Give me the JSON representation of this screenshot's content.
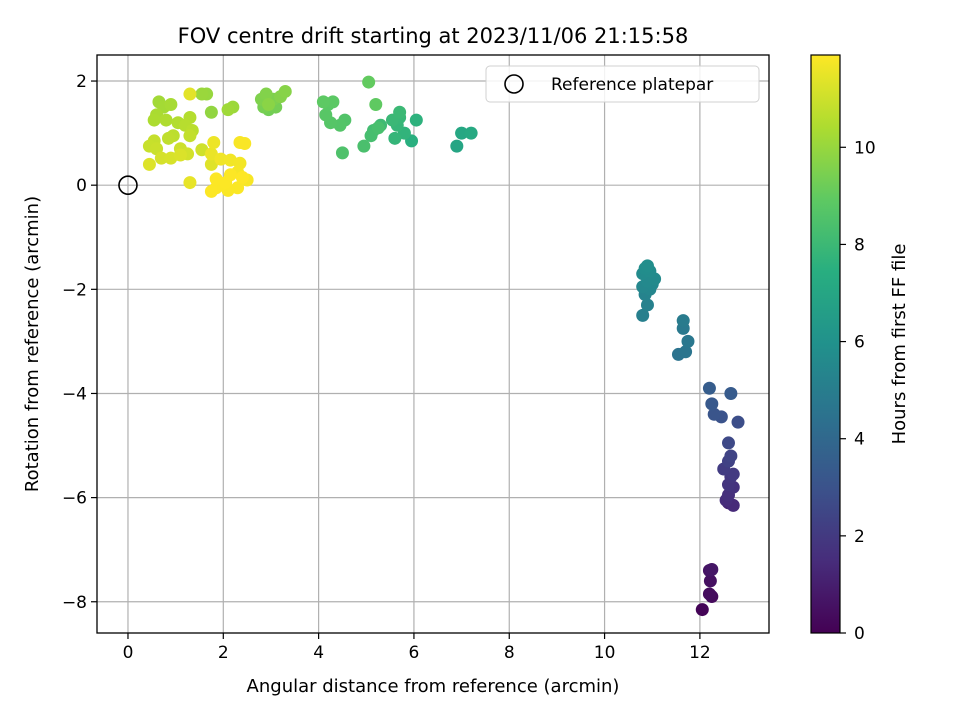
{
  "chart_data": {
    "type": "scatter",
    "title": "FOV centre drift starting at 2023/11/06 21:15:58",
    "xlabel": "Angular distance from reference (arcmin)",
    "ylabel": "Rotation from reference (arcmin)",
    "xlim": [
      -0.65,
      13.45
    ],
    "ylim": [
      -8.6,
      2.5
    ],
    "xticks": [
      0,
      2,
      4,
      6,
      8,
      10,
      12
    ],
    "yticks": [
      2,
      0,
      -2,
      -4,
      -6,
      -8
    ],
    "grid": true,
    "legend": {
      "position": "top-right",
      "entries": [
        "Reference platepar"
      ]
    },
    "reference_point": {
      "x": 0,
      "y": 0,
      "label": "Reference platepar"
    },
    "colorbar": {
      "label": "Hours from first FF file",
      "colormap": "viridis",
      "range": [
        0,
        11.9
      ],
      "ticks": [
        0,
        2,
        4,
        6,
        8,
        10
      ]
    },
    "points": [
      [
        12.05,
        -8.15,
        0.1
      ],
      [
        12.25,
        -7.9,
        0.3
      ],
      [
        12.2,
        -7.85,
        0.4
      ],
      [
        12.22,
        -7.6,
        0.5
      ],
      [
        12.2,
        -7.4,
        0.6
      ],
      [
        12.25,
        -7.38,
        0.7
      ],
      [
        12.6,
        -6.1,
        1.2
      ],
      [
        12.7,
        -6.15,
        1.4
      ],
      [
        12.55,
        -6.05,
        1.5
      ],
      [
        12.6,
        -5.95,
        1.6
      ],
      [
        12.7,
        -5.8,
        1.7
      ],
      [
        12.6,
        -5.75,
        1.8
      ],
      [
        12.65,
        -5.6,
        1.9
      ],
      [
        12.7,
        -5.55,
        2.0
      ],
      [
        12.5,
        -5.45,
        2.1
      ],
      [
        12.6,
        -5.3,
        2.3
      ],
      [
        12.65,
        -5.2,
        2.4
      ],
      [
        12.6,
        -4.95,
        2.6
      ],
      [
        12.8,
        -4.55,
        2.8
      ],
      [
        12.45,
        -4.45,
        3.0
      ],
      [
        12.3,
        -4.4,
        3.1
      ],
      [
        12.25,
        -4.2,
        3.3
      ],
      [
        12.65,
        -4.0,
        3.4
      ],
      [
        12.2,
        -3.9,
        3.5
      ],
      [
        11.55,
        -3.25,
        4.5
      ],
      [
        11.7,
        -3.2,
        4.6
      ],
      [
        11.75,
        -3.0,
        4.7
      ],
      [
        11.65,
        -2.75,
        4.8
      ],
      [
        11.65,
        -2.6,
        4.9
      ],
      [
        10.8,
        -2.5,
        5.1
      ],
      [
        10.9,
        -2.3,
        5.2
      ],
      [
        10.85,
        -2.1,
        5.3
      ],
      [
        10.95,
        -2.0,
        5.4
      ],
      [
        10.8,
        -1.95,
        5.45
      ],
      [
        11.0,
        -1.9,
        5.5
      ],
      [
        10.9,
        -1.85,
        5.55
      ],
      [
        11.05,
        -1.8,
        5.6
      ],
      [
        10.8,
        -1.7,
        5.65
      ],
      [
        10.95,
        -1.65,
        5.7
      ],
      [
        10.85,
        -1.6,
        5.75
      ],
      [
        10.9,
        -1.55,
        5.8
      ],
      [
        6.9,
        0.75,
        7.0
      ],
      [
        7.0,
        1.0,
        7.1
      ],
      [
        7.2,
        1.0,
        7.2
      ],
      [
        5.95,
        0.85,
        7.5
      ],
      [
        6.05,
        1.25,
        7.6
      ],
      [
        5.8,
        1.0,
        7.7
      ],
      [
        5.6,
        0.9,
        7.8
      ],
      [
        5.65,
        1.15,
        7.85
      ],
      [
        5.7,
        1.3,
        7.9
      ],
      [
        5.55,
        1.25,
        7.95
      ],
      [
        5.7,
        1.4,
        8.0
      ],
      [
        5.3,
        1.15,
        8.1
      ],
      [
        5.15,
        1.05,
        8.2
      ],
      [
        5.1,
        0.95,
        8.3
      ],
      [
        5.25,
        1.1,
        8.35
      ],
      [
        4.95,
        0.75,
        8.4
      ],
      [
        4.5,
        0.62,
        8.5
      ],
      [
        4.55,
        1.25,
        8.6
      ],
      [
        4.45,
        1.15,
        8.65
      ],
      [
        4.25,
        1.2,
        8.7
      ],
      [
        4.15,
        1.35,
        8.75
      ],
      [
        4.2,
        1.55,
        8.8
      ],
      [
        4.3,
        1.6,
        8.85
      ],
      [
        4.1,
        1.6,
        8.9
      ],
      [
        5.2,
        1.55,
        8.95
      ],
      [
        5.05,
        1.98,
        9.0
      ],
      [
        2.95,
        1.45,
        9.3
      ],
      [
        3.1,
        1.5,
        9.35
      ],
      [
        2.85,
        1.5,
        9.4
      ],
      [
        2.95,
        1.6,
        9.45
      ],
      [
        3.05,
        1.65,
        9.5
      ],
      [
        2.8,
        1.65,
        9.55
      ],
      [
        2.9,
        1.75,
        9.6
      ],
      [
        3.2,
        1.7,
        9.65
      ],
      [
        3.3,
        1.8,
        9.7
      ],
      [
        2.95,
        1.55,
        9.75
      ],
      [
        1.75,
        1.4,
        9.9
      ],
      [
        1.65,
        1.75,
        10.0
      ],
      [
        1.55,
        1.75,
        10.05
      ],
      [
        2.2,
        1.5,
        10.1
      ],
      [
        2.1,
        1.45,
        10.15
      ],
      [
        0.65,
        1.6,
        10.2
      ],
      [
        0.75,
        1.5,
        10.25
      ],
      [
        0.9,
        1.55,
        10.3
      ],
      [
        0.6,
        1.35,
        10.35
      ],
      [
        0.55,
        1.25,
        10.4
      ],
      [
        0.8,
        1.25,
        10.45
      ],
      [
        1.05,
        1.2,
        10.5
      ],
      [
        1.3,
        1.3,
        10.55
      ],
      [
        1.2,
        1.15,
        10.6
      ],
      [
        1.35,
        1.05,
        10.65
      ],
      [
        0.95,
        0.95,
        10.7
      ],
      [
        0.85,
        0.9,
        10.75
      ],
      [
        1.3,
        0.95,
        10.8
      ],
      [
        0.55,
        0.85,
        10.85
      ],
      [
        0.45,
        0.75,
        10.9
      ],
      [
        0.6,
        0.7,
        10.95
      ],
      [
        1.1,
        0.7,
        11.0
      ],
      [
        1.55,
        0.68,
        11.05
      ],
      [
        1.25,
        0.6,
        11.1
      ],
      [
        0.7,
        0.52,
        11.15
      ],
      [
        0.9,
        0.52,
        11.2
      ],
      [
        1.1,
        0.58,
        11.25
      ],
      [
        0.45,
        0.4,
        11.3
      ],
      [
        1.75,
        0.4,
        11.35
      ],
      [
        1.3,
        1.75,
        11.4
      ],
      [
        1.3,
        0.05,
        11.5
      ],
      [
        1.75,
        0.6,
        11.55
      ],
      [
        1.8,
        0.82,
        11.6
      ],
      [
        1.95,
        0.5,
        11.65
      ],
      [
        2.15,
        0.48,
        11.7
      ],
      [
        2.35,
        0.42,
        11.72
      ],
      [
        2.3,
        0.25,
        11.75
      ],
      [
        2.5,
        0.1,
        11.78
      ],
      [
        2.35,
        0.82,
        11.8
      ],
      [
        2.45,
        0.8,
        11.82
      ],
      [
        2.3,
        -0.05,
        11.84
      ],
      [
        2.1,
        -0.1,
        11.85
      ],
      [
        1.95,
        0.0,
        11.86
      ],
      [
        1.85,
        -0.05,
        11.87
      ],
      [
        1.75,
        -0.12,
        11.88
      ],
      [
        1.85,
        0.12,
        11.88
      ],
      [
        2.05,
        0.05,
        11.89
      ],
      [
        2.15,
        0.2,
        11.89
      ],
      [
        2.4,
        0.15,
        11.9
      ]
    ]
  }
}
